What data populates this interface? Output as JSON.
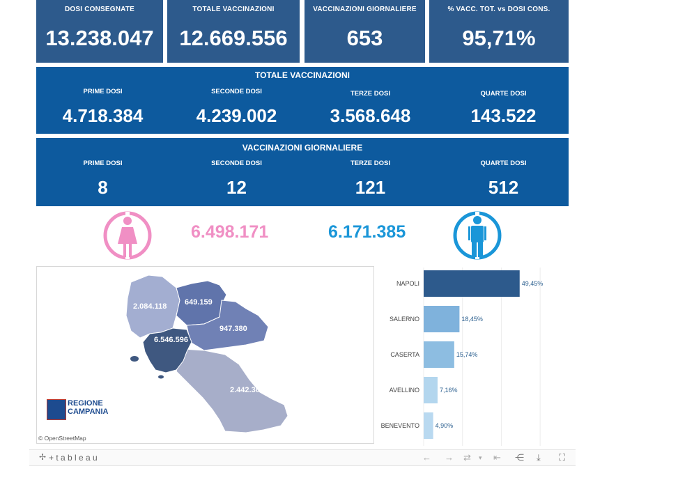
{
  "kpis": [
    {
      "label": "DOSI  CONSEGNATE",
      "value": "13.238.047"
    },
    {
      "label": "TOTALE VACCINAZIONI",
      "value": "12.669.556"
    },
    {
      "label": "VACCINAZIONI GIORNALIERE",
      "value": "653"
    },
    {
      "label": "% VACC. TOT. vs DOSI CONS.",
      "value": "95,71%"
    }
  ],
  "totale": {
    "title": "TOTALE VACCINAZIONI",
    "items": [
      {
        "label": "PRIME DOSI",
        "value": "4.718.384"
      },
      {
        "label": "SECONDE DOSI",
        "value": "4.239.002"
      },
      {
        "label": "TERZE DOSI",
        "value": "3.568.648"
      },
      {
        "label": "QUARTE DOSI",
        "value": "143.522"
      }
    ]
  },
  "giornaliere": {
    "title": "VACCINAZIONI GIORNALIERE",
    "items": [
      {
        "label": "PRIME DOSI",
        "value": "8"
      },
      {
        "label": "SECONDE DOSI",
        "value": "12"
      },
      {
        "label": "TERZE DOSI",
        "value": "121"
      },
      {
        "label": "QUARTE DOSI",
        "value": "512"
      }
    ]
  },
  "gender": {
    "female_value": "6.498.171",
    "male_value": "6.171.385",
    "female_color": "#f08fc4",
    "male_color": "#1a96d8"
  },
  "map": {
    "labels": {
      "caserta": "2.084.118",
      "benevento": "649.159",
      "avellino": "947.380",
      "napoli": "6.546.596",
      "salerno": "2.442.303"
    },
    "logo_line1": "REGIONE",
    "logo_line2": "CAMPANIA",
    "attribution": "© OpenStreetMap"
  },
  "chart_data": {
    "type": "bar",
    "orientation": "horizontal",
    "categories": [
      "NAPOLI",
      "SALERNO",
      "CASERTA",
      "AVELLINO",
      "BENEVENTO"
    ],
    "values": [
      49.45,
      18.45,
      15.74,
      7.16,
      4.9
    ],
    "value_labels": [
      "49,45%",
      "18,45%",
      "15,74%",
      "7,16%",
      "4,90%"
    ],
    "colors": [
      "#2d5a8c",
      "#7fb2dc",
      "#8dbde1",
      "#b3d6ee",
      "#b9d9f0"
    ],
    "xlim": [
      0,
      70
    ],
    "grid": true
  },
  "footer": {
    "brand": "+ t a b l e a u",
    "icons": [
      "undo-icon",
      "redo-icon",
      "revert-icon",
      "back-to-start-icon",
      "share-icon",
      "download-icon",
      "fullscreen-icon"
    ]
  }
}
